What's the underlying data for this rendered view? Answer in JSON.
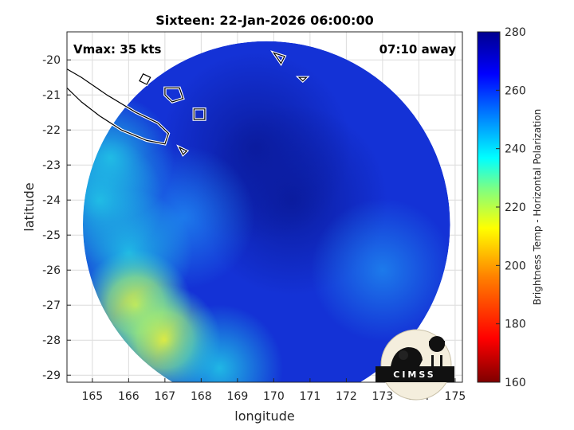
{
  "chart_data": {
    "type": "heatmap",
    "title": "Sixteen: 22-Jan-2026 06:00:00",
    "xlabel": "longitude",
    "ylabel": "latitude",
    "xlim": [
      164.3,
      175.2
    ],
    "ylim": [
      -29.2,
      -19.2
    ],
    "xticks": [
      165,
      166,
      167,
      168,
      169,
      170,
      171,
      172,
      173,
      174,
      175
    ],
    "yticks": [
      -20,
      -21,
      -22,
      -23,
      -24,
      -25,
      -26,
      -27,
      -28,
      -29
    ],
    "grid": true,
    "annotations": {
      "vmax": "Vmax: 35 kts",
      "time_away": "07:10 away"
    },
    "colorbar": {
      "label": "Brightness Temp - Horizontal Polarization",
      "range": [
        160,
        280
      ],
      "ticks": [
        280,
        260,
        240,
        220,
        200,
        180,
        160
      ],
      "colormap": [
        "#7f0000",
        "#ff0000",
        "#ff8000",
        "#ffff00",
        "#80ff80",
        "#00ffff",
        "#0080ff",
        "#0000ff",
        "#00008f"
      ]
    },
    "swath": {
      "center": [
        169.8,
        -24.7
      ],
      "radius_deg": 5.5
    },
    "field_samples": [
      {
        "lon": 170.5,
        "lat": -24.0,
        "value": 272
      },
      {
        "lon": 169.5,
        "lat": -22.5,
        "value": 268
      },
      {
        "lon": 167.5,
        "lat": -24.5,
        "value": 262
      },
      {
        "lon": 166.0,
        "lat": -25.5,
        "value": 245
      },
      {
        "lon": 165.2,
        "lat": -24.0,
        "value": 240
      },
      {
        "lon": 166.2,
        "lat": -27.0,
        "value": 212
      },
      {
        "lon": 167.0,
        "lat": -28.0,
        "value": 225
      },
      {
        "lon": 168.5,
        "lat": -28.8,
        "value": 232
      },
      {
        "lon": 165.5,
        "lat": -22.8,
        "value": 250
      },
      {
        "lon": 173.0,
        "lat": -26.0,
        "value": 266
      }
    ],
    "coastlines": [
      {
        "name": "new-caledonia",
        "points": [
          [
            164.2,
            -20.2
          ],
          [
            164.7,
            -20.5
          ],
          [
            165.4,
            -21.0
          ],
          [
            166.2,
            -21.5
          ],
          [
            166.8,
            -21.8
          ],
          [
            167.1,
            -22.1
          ],
          [
            167.0,
            -22.4
          ],
          [
            166.5,
            -22.3
          ],
          [
            165.8,
            -22.0
          ],
          [
            165.2,
            -21.6
          ],
          [
            164.7,
            -21.2
          ],
          [
            164.3,
            -20.8
          ]
        ]
      },
      {
        "name": "ouvea",
        "points": [
          [
            166.4,
            -20.4
          ],
          [
            166.6,
            -20.5
          ],
          [
            166.5,
            -20.7
          ],
          [
            166.3,
            -20.6
          ]
        ]
      },
      {
        "name": "lifou",
        "points": [
          [
            167.0,
            -20.8
          ],
          [
            167.4,
            -20.8
          ],
          [
            167.5,
            -21.1
          ],
          [
            167.2,
            -21.2
          ],
          [
            167.0,
            -21.0
          ]
        ]
      },
      {
        "name": "mare",
        "points": [
          [
            167.8,
            -21.4
          ],
          [
            168.1,
            -21.4
          ],
          [
            168.1,
            -21.7
          ],
          [
            167.8,
            -21.7
          ]
        ]
      },
      {
        "name": "isle-of-pines",
        "points": [
          [
            167.4,
            -22.5
          ],
          [
            167.6,
            -22.6
          ],
          [
            167.5,
            -22.7
          ]
        ]
      },
      {
        "name": "matthew-island",
        "points": [
          [
            170.0,
            -19.8
          ],
          [
            170.3,
            -19.9
          ],
          [
            170.2,
            -20.1
          ]
        ]
      },
      {
        "name": "hunter-island",
        "points": [
          [
            170.7,
            -20.5
          ],
          [
            170.9,
            -20.5
          ],
          [
            170.8,
            -20.6
          ]
        ]
      }
    ],
    "logo_text": "CIMSS"
  }
}
